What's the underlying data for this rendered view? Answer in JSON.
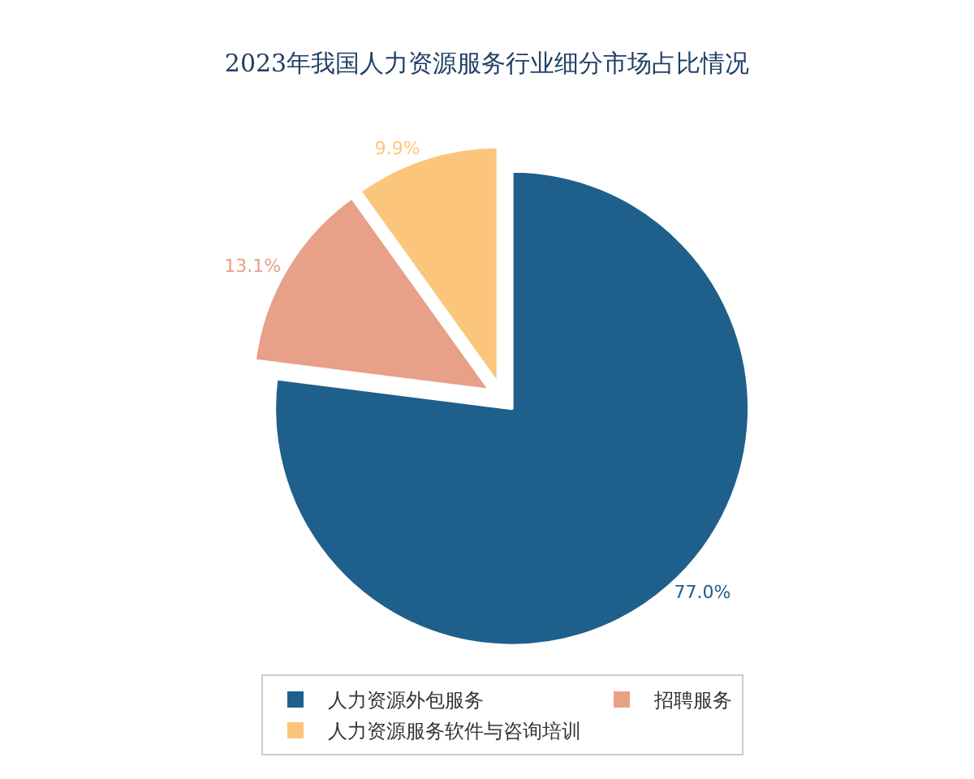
{
  "chart_data": {
    "type": "pie",
    "title": "2023年我国人力资源服务行业细分市场占比情况",
    "categories": [
      "人力资源外包服务",
      "招聘服务",
      "人力资源服务软件与咨询培训"
    ],
    "values": [
      77.0,
      13.1,
      9.9
    ],
    "value_labels": [
      "77.0%",
      "13.1%",
      "9.9%"
    ],
    "colors": [
      "#1f5f8b",
      "#e8a088",
      "#fbc67c"
    ],
    "legend": "bottom"
  }
}
